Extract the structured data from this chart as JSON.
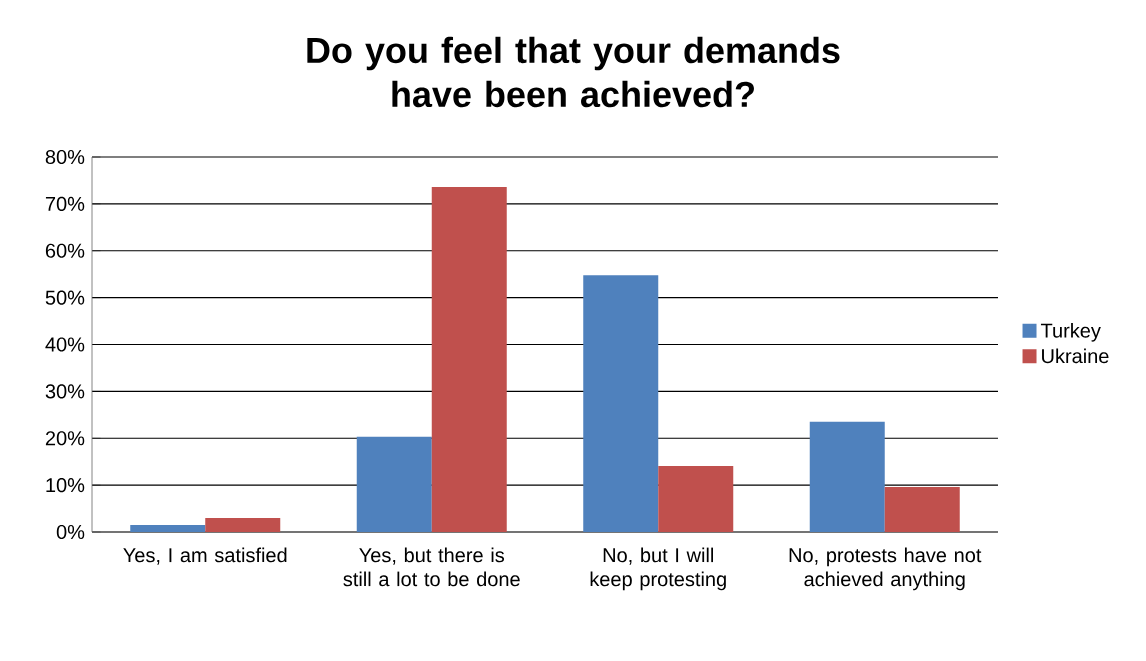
{
  "chart_data": {
    "type": "bar",
    "title": "Do you feel that your demands have been achieved?",
    "categories": [
      "Yes, I am satisfied",
      "Yes, but there is still a lot to be done",
      "No, but I will keep protesting",
      "No, protests have not achieved anything"
    ],
    "series": [
      {
        "name": "Turkey",
        "color": "#4f81bd",
        "values": [
          1.5,
          20.3,
          54.8,
          23.5
        ]
      },
      {
        "name": "Ukraine",
        "color": "#c0504d",
        "values": [
          3.0,
          73.6,
          14.1,
          9.6
        ]
      }
    ],
    "ylim": [
      0,
      80
    ],
    "yticks": [
      {
        "value": 0,
        "label": "0%"
      },
      {
        "value": 10,
        "label": "10%"
      },
      {
        "value": 20,
        "label": "20%"
      },
      {
        "value": 30,
        "label": "30%"
      },
      {
        "value": 40,
        "label": "40%"
      },
      {
        "value": 50,
        "label": "50%"
      },
      {
        "value": 60,
        "label": "60%"
      },
      {
        "value": 70,
        "label": "70%"
      },
      {
        "value": 80,
        "label": "80%"
      }
    ],
    "grid": "y",
    "legend": "right"
  }
}
